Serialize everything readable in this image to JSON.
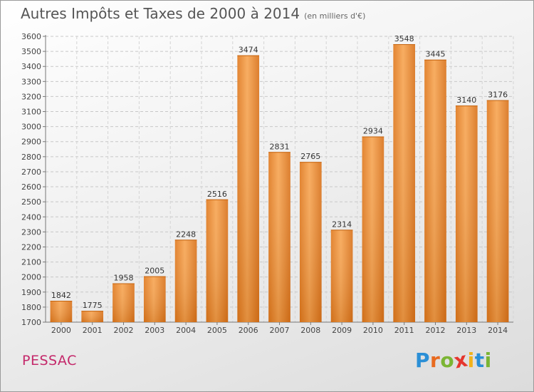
{
  "header": {
    "title": "Autres Impôts et Taxes de 2000 à 2014",
    "subtitle": "(en milliers d'€)"
  },
  "footer": {
    "city": "PESSAC",
    "logo_letters": [
      "P",
      "r",
      "o",
      "x",
      "i",
      "t",
      "i"
    ],
    "logo_colors": [
      "#2b8fd6",
      "#e86a1f",
      "#7bb534",
      "#e5362e",
      "#f2b21b",
      "#2b8fd6",
      "#7bb534"
    ]
  },
  "chart_data": {
    "type": "bar",
    "title": "Autres Impôts et Taxes de 2000 à 2014",
    "subtitle": "(en milliers d'€)",
    "categories": [
      "2000",
      "2001",
      "2002",
      "2003",
      "2004",
      "2005",
      "2006",
      "2007",
      "2008",
      "2009",
      "2010",
      "2011",
      "2012",
      "2013",
      "2014"
    ],
    "values": [
      1842,
      1775,
      1958,
      2005,
      2248,
      2516,
      3474,
      2831,
      2765,
      2314,
      2934,
      3548,
      3445,
      3140,
      3176
    ],
    "ylim": [
      1700,
      3600
    ],
    "ytick_step": 100,
    "grid": true,
    "bar_color": "#f0923a"
  }
}
